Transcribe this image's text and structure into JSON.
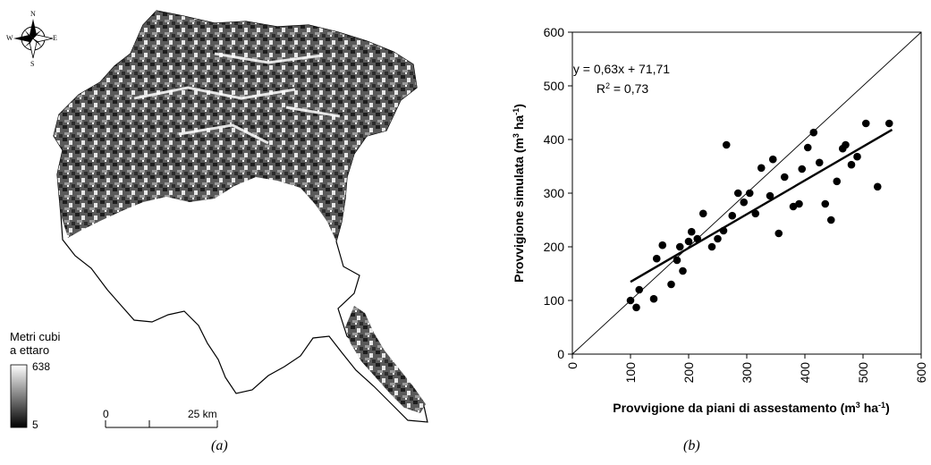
{
  "map": {
    "legend_title": [
      "Metri cubi",
      "a ettaro"
    ],
    "legend_max": "638",
    "legend_min": "5",
    "scale_start": "0",
    "scale_end": "25 km",
    "compass": {
      "n": "N",
      "s": "S",
      "e": "E",
      "w": "W"
    },
    "caption": "(a)"
  },
  "chart": {
    "caption": "(b)",
    "equation": "y = 0,63x + 71,71",
    "r2_label": "R",
    "r2_value": " = 0,73"
  },
  "chart_data": {
    "type": "scatter",
    "xlabel": "Provvigione da piani di assestamento (m",
    "ylabel": "Provvigione simulata (m",
    "xlim": [
      0,
      600
    ],
    "ylim": [
      0,
      600
    ],
    "xticks": [
      "0",
      "100",
      "200",
      "300",
      "400",
      "500",
      "600"
    ],
    "yticks": [
      "0",
      "100",
      "200",
      "300",
      "400",
      "500",
      "600"
    ],
    "regression": {
      "slope": 0.63,
      "intercept": 71.71,
      "x_range": [
        100,
        550
      ]
    },
    "identity_line": true,
    "points": [
      [
        100,
        100
      ],
      [
        110,
        87
      ],
      [
        115,
        120
      ],
      [
        140,
        103
      ],
      [
        145,
        178
      ],
      [
        155,
        203
      ],
      [
        170,
        130
      ],
      [
        180,
        175
      ],
      [
        185,
        200
      ],
      [
        190,
        155
      ],
      [
        200,
        210
      ],
      [
        205,
        228
      ],
      [
        215,
        215
      ],
      [
        225,
        262
      ],
      [
        240,
        200
      ],
      [
        250,
        215
      ],
      [
        260,
        230
      ],
      [
        265,
        390
      ],
      [
        275,
        258
      ],
      [
        285,
        300
      ],
      [
        295,
        283
      ],
      [
        305,
        300
      ],
      [
        315,
        262
      ],
      [
        325,
        347
      ],
      [
        340,
        295
      ],
      [
        345,
        363
      ],
      [
        355,
        225
      ],
      [
        365,
        330
      ],
      [
        380,
        275
      ],
      [
        390,
        280
      ],
      [
        395,
        345
      ],
      [
        405,
        385
      ],
      [
        415,
        413
      ],
      [
        425,
        357
      ],
      [
        435,
        280
      ],
      [
        445,
        250
      ],
      [
        455,
        322
      ],
      [
        465,
        383
      ],
      [
        470,
        390
      ],
      [
        480,
        353
      ],
      [
        490,
        368
      ],
      [
        505,
        430
      ],
      [
        525,
        312
      ],
      [
        545,
        430
      ]
    ]
  }
}
